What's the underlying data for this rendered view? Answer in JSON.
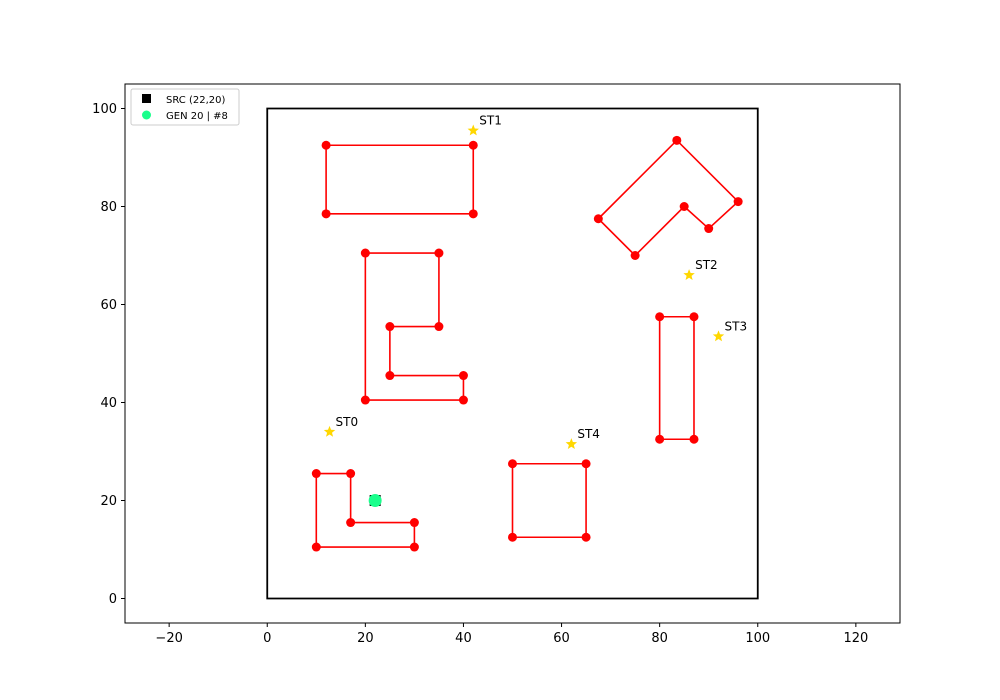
{
  "chart_data": {
    "type": "scatter",
    "title": "",
    "xlabel": "",
    "ylabel": "",
    "xlim": [
      -29,
      129
    ],
    "ylim": [
      -5,
      105
    ],
    "xticks": [
      -20,
      0,
      20,
      40,
      60,
      80,
      100,
      120
    ],
    "yticks": [
      0,
      20,
      40,
      60,
      80,
      100
    ],
    "grid": false,
    "legend": {
      "placement": "top-left",
      "entries": [
        {
          "label": "SRC (22,20)",
          "marker": "square",
          "color": "#000000"
        },
        {
          "label": "GEN 20 | #8",
          "marker": "circle",
          "color": "#1aff8c"
        }
      ]
    },
    "boundary": {
      "color": "#000000",
      "points": [
        [
          0,
          0
        ],
        [
          100,
          0
        ],
        [
          100,
          100
        ],
        [
          0,
          100
        ]
      ]
    },
    "obstacles": {
      "color": "#ff0000",
      "polygons": [
        [
          [
            10,
            10.5
          ],
          [
            30,
            10.5
          ],
          [
            30,
            15.5
          ],
          [
            17,
            15.5
          ],
          [
            17,
            25.5
          ],
          [
            10,
            25.5
          ]
        ],
        [
          [
            12,
            78.5
          ],
          [
            42,
            78.5
          ],
          [
            42,
            92.5
          ],
          [
            12,
            92.5
          ]
        ],
        [
          [
            20,
            40.5
          ],
          [
            40,
            40.5
          ],
          [
            40,
            45.5
          ],
          [
            25,
            45.5
          ],
          [
            25,
            55.5
          ],
          [
            35,
            55.5
          ],
          [
            35,
            70.5
          ],
          [
            20,
            70.5
          ]
        ],
        [
          [
            50,
            12.5
          ],
          [
            65,
            12.5
          ],
          [
            65,
            27.5
          ],
          [
            50,
            27.5
          ]
        ],
        [
          [
            80,
            32.5
          ],
          [
            87,
            32.5
          ],
          [
            87,
            57.5
          ],
          [
            80,
            57.5
          ]
        ],
        [
          [
            67.5,
            77.5
          ],
          [
            83.5,
            93.5
          ],
          [
            96,
            81
          ],
          [
            90,
            75.5
          ],
          [
            85,
            80
          ],
          [
            75,
            70
          ]
        ]
      ]
    },
    "stations": {
      "color": "#ffd700",
      "points": [
        {
          "label": "ST0",
          "x": 12.7,
          "y": 34
        },
        {
          "label": "ST1",
          "x": 42,
          "y": 95.5
        },
        {
          "label": "ST2",
          "x": 86,
          "y": 66
        },
        {
          "label": "ST3",
          "x": 92,
          "y": 53.5
        },
        {
          "label": "ST4",
          "x": 62,
          "y": 31.5
        }
      ]
    },
    "source": {
      "x": 22,
      "y": 20,
      "color": "#000000"
    },
    "generation": {
      "x": 22,
      "y": 20,
      "color": "#1aff8c"
    }
  }
}
